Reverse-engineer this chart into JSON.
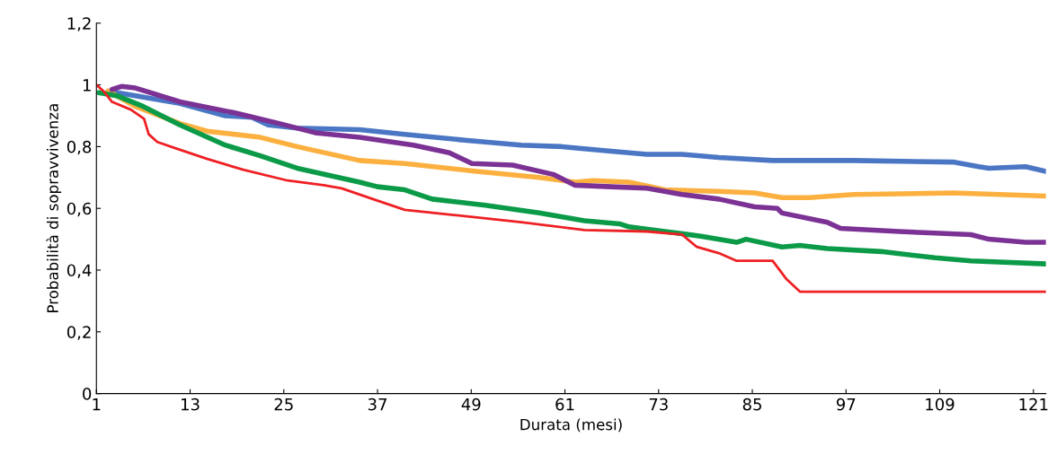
{
  "chart_data": {
    "type": "line",
    "xlabel": "Durata (mesi)",
    "ylabel": "Probabilità di sopravvivenza",
    "xlim": [
      1,
      122.6
    ],
    "ylim": [
      0,
      1.2
    ],
    "xticks": [
      1,
      13,
      25,
      37,
      49,
      61,
      73,
      85,
      97,
      109,
      121
    ],
    "yticks": [
      {
        "value": 0,
        "label": "0"
      },
      {
        "value": 0.2,
        "label": "0,2"
      },
      {
        "value": 0.4,
        "label": "0,4"
      },
      {
        "value": 0.6,
        "label": "0,6"
      },
      {
        "value": 0.8,
        "label": "0,8"
      },
      {
        "value": 1,
        "label": "1"
      },
      {
        "value": 1.2,
        "label": "1,2"
      }
    ],
    "grid": false,
    "legend": false,
    "marker": "none",
    "line_style": "solid",
    "series": [
      {
        "color": "#4a76c4",
        "x": [
          2.5,
          11.7,
          17.5,
          20.9,
          23,
          26.7,
          34.7,
          40.5,
          48.5,
          55.4,
          60.6,
          66.9,
          71.5,
          76,
          80.7,
          87.6,
          98,
          110.7,
          114,
          115.3,
          120,
          122.6
        ],
        "values": [
          0.98,
          0.94,
          0.9,
          0.895,
          0.87,
          0.86,
          0.855,
          0.84,
          0.82,
          0.805,
          0.8,
          0.785,
          0.775,
          0.775,
          0.765,
          0.755,
          0.755,
          0.75,
          0.735,
          0.73,
          0.735,
          0.72
        ]
      },
      {
        "color": "#fbb040",
        "x": [
          2.5,
          6,
          11.7,
          15.2,
          22,
          26.7,
          34.7,
          40.5,
          49.7,
          57.7,
          62.3,
          64.6,
          69.2,
          73.8,
          80.7,
          85.3,
          88.8,
          92.3,
          98,
          110.7,
          122.6
        ],
        "values": [
          0.98,
          0.93,
          0.875,
          0.85,
          0.83,
          0.8,
          0.755,
          0.745,
          0.72,
          0.7,
          0.685,
          0.69,
          0.685,
          0.66,
          0.655,
          0.65,
          0.635,
          0.635,
          0.645,
          0.65,
          0.64
        ]
      },
      {
        "color": "#7b3294",
        "x": [
          3,
          4.2,
          6,
          11.7,
          18.6,
          24.4,
          29,
          34.7,
          41.6,
          46.2,
          49.1,
          54.3,
          59.5,
          62.3,
          66.9,
          71.5,
          76,
          80.7,
          85.3,
          88.2,
          88.8,
          94.6,
          96.3,
          103.8,
          108.4,
          113,
          115.3,
          120,
          122.6
        ],
        "values": [
          0.985,
          0.995,
          0.99,
          0.945,
          0.91,
          0.875,
          0.845,
          0.83,
          0.805,
          0.78,
          0.745,
          0.74,
          0.71,
          0.675,
          0.67,
          0.665,
          0.645,
          0.63,
          0.605,
          0.6,
          0.585,
          0.555,
          0.535,
          0.525,
          0.52,
          0.515,
          0.5,
          0.49,
          0.49
        ]
      },
      {
        "color": "#0b9a48",
        "x": [
          1.3,
          3.6,
          7,
          11.7,
          17.5,
          22,
          26.7,
          34.7,
          37,
          40.5,
          44,
          50.8,
          57.7,
          63.5,
          68,
          69.2,
          73.8,
          78.4,
          83,
          84.2,
          88.8,
          91.1,
          94.6,
          101.5,
          108.4,
          113,
          122.6
        ],
        "values": [
          0.975,
          0.965,
          0.93,
          0.87,
          0.805,
          0.77,
          0.73,
          0.685,
          0.67,
          0.66,
          0.63,
          0.61,
          0.585,
          0.56,
          0.55,
          0.54,
          0.525,
          0.51,
          0.49,
          0.5,
          0.475,
          0.48,
          0.47,
          0.46,
          0.44,
          0.43,
          0.42
        ]
      },
      {
        "color": "#ee2024",
        "x": [
          1,
          1.9,
          3,
          5.4,
          7.1,
          7.7,
          8.8,
          11.1,
          15.2,
          19.8,
          25.5,
          30.1,
          32.4,
          37,
          40.5,
          46.2,
          55.4,
          63.5,
          71.5,
          76,
          77.9,
          80.7,
          83,
          87.6,
          89.4,
          91.1,
          103.8,
          122.6
        ],
        "values": [
          1.0,
          0.98,
          0.945,
          0.92,
          0.89,
          0.84,
          0.815,
          0.795,
          0.76,
          0.725,
          0.69,
          0.675,
          0.665,
          0.625,
          0.595,
          0.58,
          0.555,
          0.53,
          0.525,
          0.515,
          0.475,
          0.455,
          0.43,
          0.43,
          0.37,
          0.33,
          0.33,
          0.33
        ]
      }
    ]
  }
}
